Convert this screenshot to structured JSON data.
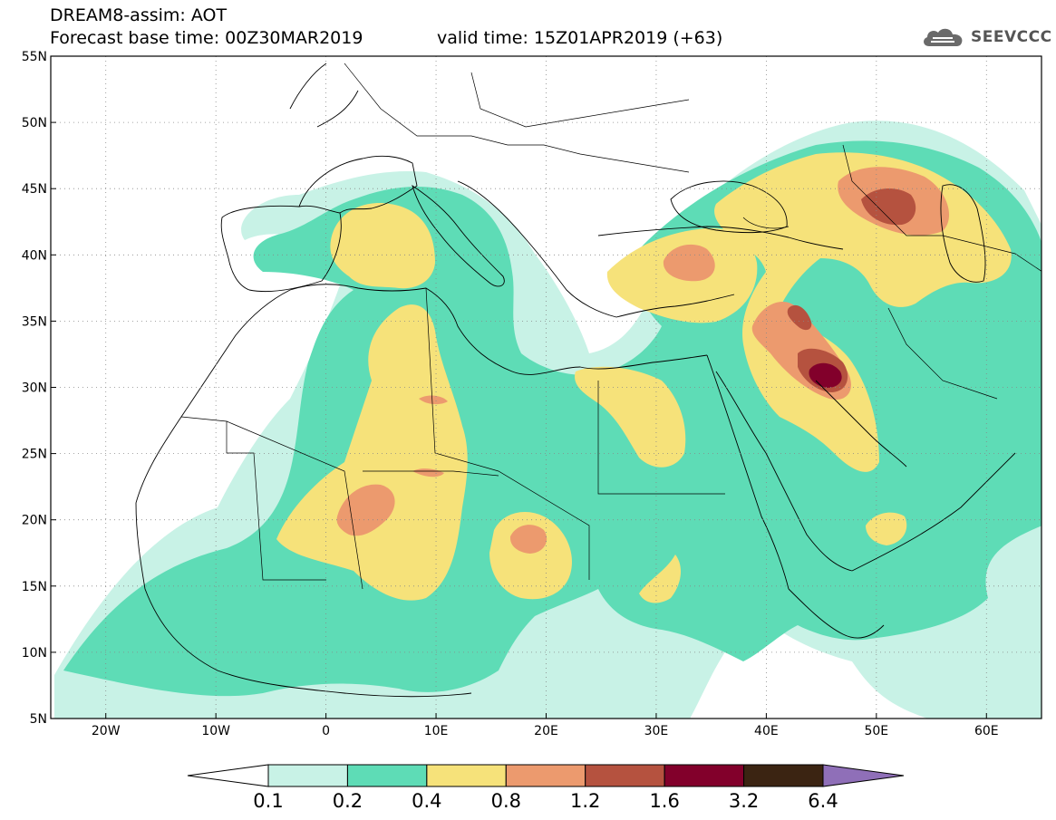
{
  "header": {
    "title_line1": "DREAM8-assim: AOT",
    "title_line2": "Forecast base time: 00Z30MAR2019",
    "valid_time": "valid time: 15Z01APR2019 (+63)",
    "logo_text": "SEEVCCC"
  },
  "map": {
    "lon_min": -25,
    "lon_max": 65,
    "lat_min": 5,
    "lat_max": 55,
    "lat_ticks": [
      {
        "value": 55,
        "label": "55N"
      },
      {
        "value": 50,
        "label": "50N"
      },
      {
        "value": 45,
        "label": "45N"
      },
      {
        "value": 40,
        "label": "40N"
      },
      {
        "value": 35,
        "label": "35N"
      },
      {
        "value": 30,
        "label": "30N"
      },
      {
        "value": 25,
        "label": "25N"
      },
      {
        "value": 20,
        "label": "20N"
      },
      {
        "value": 15,
        "label": "15N"
      },
      {
        "value": 10,
        "label": "10N"
      },
      {
        "value": 5,
        "label": "5N"
      }
    ],
    "lon_ticks": [
      {
        "value": -20,
        "label": "20W"
      },
      {
        "value": -10,
        "label": "10W"
      },
      {
        "value": 0,
        "label": "0"
      },
      {
        "value": 10,
        "label": "10E"
      },
      {
        "value": 20,
        "label": "20E"
      },
      {
        "value": 30,
        "label": "30E"
      },
      {
        "value": 40,
        "label": "40E"
      },
      {
        "value": 50,
        "label": "50E"
      },
      {
        "value": 60,
        "label": "60E"
      }
    ],
    "gridlines": "dotted"
  },
  "colorbar": {
    "labels": [
      "0.1",
      "0.2",
      "0.4",
      "0.8",
      "1.2",
      "1.6",
      "3.2",
      "6.4"
    ],
    "colors": [
      "#ffffff",
      "#c8f2e6",
      "#5edcb6",
      "#f6e27a",
      "#ec9a6e",
      "#b5523f",
      "#82002b",
      "#3b2412",
      "#8f6fb8"
    ]
  }
}
